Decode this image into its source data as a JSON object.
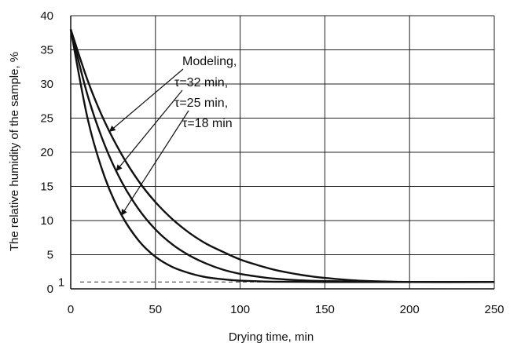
{
  "chart_data": {
    "type": "line",
    "title": "",
    "xlabel": "Drying time, min",
    "ylabel": "The relative humidity of the sample, %",
    "xlim": [
      0,
      250
    ],
    "ylim": [
      0,
      40
    ],
    "xticks": [
      0,
      50,
      100,
      150,
      200,
      250
    ],
    "yticks": [
      0,
      5,
      10,
      15,
      20,
      25,
      30,
      35,
      40
    ],
    "grid": true,
    "series": [
      {
        "label_id": "tau32",
        "x": [
          0,
          10,
          20,
          30,
          40,
          50,
          60,
          70,
          80,
          90,
          100,
          110,
          120,
          130,
          140,
          150,
          170,
          200,
          250
        ],
        "y": [
          38.0,
          30.5,
          24.5,
          19.7,
          15.8,
          12.7,
          10.2,
          8.2,
          6.6,
          5.4,
          4.3,
          3.5,
          2.8,
          2.3,
          1.9,
          1.6,
          1.2,
          1.0,
          1.0
        ]
      },
      {
        "label_id": "tau25",
        "x": [
          0,
          10,
          20,
          30,
          40,
          50,
          60,
          70,
          80,
          90,
          100,
          110,
          120,
          140,
          160,
          200,
          250
        ],
        "y": [
          38.0,
          28.3,
          21.1,
          15.7,
          11.7,
          8.7,
          6.5,
          4.9,
          3.7,
          2.8,
          2.2,
          1.8,
          1.5,
          1.2,
          1.1,
          1.0,
          1.0
        ]
      },
      {
        "label_id": "tau18",
        "x": [
          0,
          10,
          20,
          30,
          40,
          50,
          60,
          70,
          80,
          90,
          100,
          120,
          150,
          200,
          250
        ],
        "y": [
          38.0,
          24.9,
          16.4,
          10.8,
          7.1,
          4.7,
          3.2,
          2.3,
          1.7,
          1.4,
          1.2,
          1.05,
          1.0,
          1.0,
          1.0
        ]
      }
    ],
    "reference_line": {
      "y": 1,
      "label": "1",
      "style": "dashed"
    },
    "annotation": {
      "lines": [
        "Modeling,",
        "τ=32 min,",
        "τ=25 min,",
        "τ=18 min"
      ],
      "arrow_targets": [
        {
          "series": "tau32",
          "x": 23
        },
        {
          "series": "tau25",
          "x": 27
        },
        {
          "series": "tau18",
          "x": 30
        }
      ]
    }
  }
}
